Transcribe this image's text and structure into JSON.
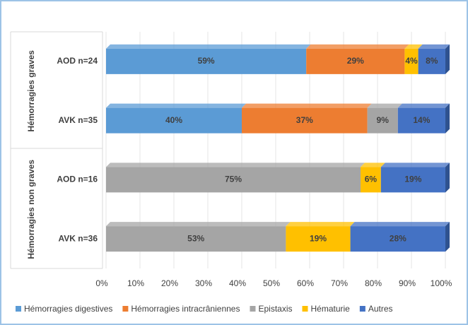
{
  "chart_data": {
    "type": "stacked-bar-horizontal",
    "groups": [
      {
        "name": "Hémorragies graves",
        "categories": [
          "AOD n=24",
          "AVK n=35"
        ]
      },
      {
        "name": "Hémorragies non graves",
        "categories": [
          "AOD n=16",
          "AVK n=36"
        ]
      }
    ],
    "series": [
      {
        "name": "Hémorragies digestives",
        "color": "#5b9bd5",
        "values": [
          59,
          40,
          null,
          null
        ],
        "value_labels": [
          "59%",
          "40%",
          null,
          null
        ]
      },
      {
        "name": "Hémorragies intracrâniennes",
        "color": "#ed7d31",
        "values": [
          29,
          37,
          null,
          null
        ],
        "value_labels": [
          "29%",
          "37%",
          null,
          null
        ]
      },
      {
        "name": "Epistaxis",
        "color": "#a5a5a5",
        "values": [
          null,
          9,
          75,
          53
        ],
        "value_labels": [
          null,
          "9%",
          "75%",
          "53%"
        ]
      },
      {
        "name": "Hématurie",
        "color": "#ffc000",
        "values": [
          4,
          null,
          6,
          19
        ],
        "value_labels": [
          "4%",
          null,
          "6%",
          "19%"
        ]
      },
      {
        "name": "Autres",
        "color": "#4472c4",
        "values": [
          8,
          14,
          19,
          28
        ],
        "value_labels": [
          "8%",
          "14%",
          "19%",
          "28%"
        ]
      }
    ],
    "xlim": [
      0,
      100
    ],
    "xticks": [
      {
        "value": 0,
        "label": "0%"
      },
      {
        "value": 10,
        "label": "10%"
      },
      {
        "value": 20,
        "label": "20%"
      },
      {
        "value": 30,
        "label": "30%"
      },
      {
        "value": 40,
        "label": "40%"
      },
      {
        "value": 50,
        "label": "50%"
      },
      {
        "value": 60,
        "label": "60%"
      },
      {
        "value": 70,
        "label": "70%"
      },
      {
        "value": 80,
        "label": "80%"
      },
      {
        "value": 90,
        "label": "90%"
      },
      {
        "value": 100,
        "label": "100%"
      }
    ],
    "grid": true,
    "legend": "bottom"
  }
}
